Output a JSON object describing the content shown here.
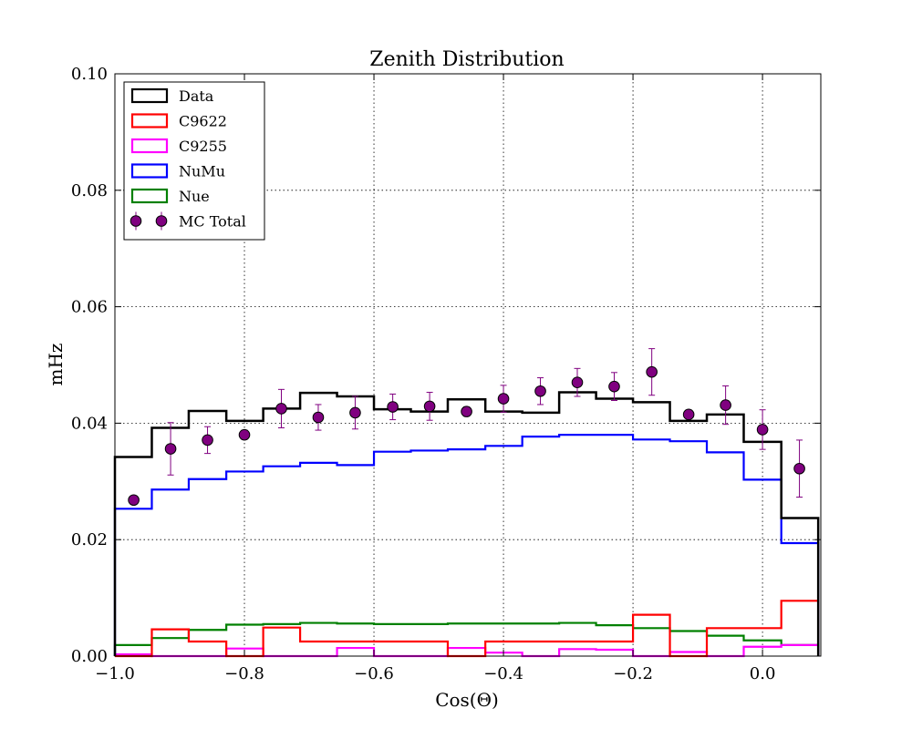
{
  "chart_data": {
    "type": "step-histogram",
    "title": "Zenith Distribution",
    "xlabel": "Cos(Θ)",
    "ylabel": "mHz",
    "xlim": [
      -1.0,
      0.09
    ],
    "ylim": [
      0.0,
      0.1
    ],
    "xticks": [
      -1.0,
      -0.8,
      -0.6,
      -0.4,
      -0.2,
      0.0
    ],
    "xtick_labels": [
      "−1.0",
      "−0.8",
      "−0.6",
      "−0.4",
      "−0.2",
      "0.0"
    ],
    "yticks": [
      0.0,
      0.02,
      0.04,
      0.06,
      0.08,
      0.1
    ],
    "ytick_labels": [
      "0.00",
      "0.02",
      "0.04",
      "0.06",
      "0.08",
      "0.10"
    ],
    "grid": true,
    "legend_position": "top-left",
    "bin_edges": [
      -1.0,
      -0.943,
      -0.886,
      -0.828,
      -0.771,
      -0.714,
      -0.657,
      -0.6,
      -0.543,
      -0.486,
      -0.428,
      -0.371,
      -0.314,
      -0.257,
      -0.2,
      -0.143,
      -0.086,
      -0.029,
      0.029,
      0.086
    ],
    "series": [
      {
        "name": "Data",
        "color": "#000000",
        "values": [
          0.0342,
          0.0392,
          0.0421,
          0.0404,
          0.0425,
          0.0452,
          0.0446,
          0.0424,
          0.042,
          0.0441,
          0.042,
          0.0418,
          0.0453,
          0.0442,
          0.0436,
          0.0404,
          0.0415,
          0.0368,
          0.0237
        ]
      },
      {
        "name": "C9622",
        "color": "#ff0000",
        "values": [
          0.0,
          0.0046,
          0.0025,
          0.0,
          0.0049,
          0.0025,
          0.0025,
          0.0025,
          0.0025,
          0.0,
          0.0025,
          0.0025,
          0.0025,
          0.0025,
          0.0071,
          0.0,
          0.0048,
          0.0048,
          0.0095
        ]
      },
      {
        "name": "C9255",
        "color": "#ff00ff",
        "values": [
          0.0003,
          0.0,
          0.0,
          0.0013,
          0.0,
          0.0,
          0.0014,
          0.0,
          0.0,
          0.0014,
          0.0006,
          0.0,
          0.0012,
          0.0011,
          0.0,
          0.0007,
          0.0,
          0.0016,
          0.0019
        ]
      },
      {
        "name": "NuMu",
        "color": "#0000ff",
        "values": [
          0.0253,
          0.0286,
          0.0304,
          0.0317,
          0.0326,
          0.0332,
          0.0328,
          0.0351,
          0.0353,
          0.0355,
          0.0361,
          0.0377,
          0.038,
          0.038,
          0.0372,
          0.0369,
          0.035,
          0.0303,
          0.0194
        ]
      },
      {
        "name": "Nue",
        "color": "#008000",
        "values": [
          0.0019,
          0.0031,
          0.0045,
          0.0054,
          0.0055,
          0.0057,
          0.0056,
          0.0055,
          0.0055,
          0.0056,
          0.0056,
          0.0056,
          0.0057,
          0.0053,
          0.0048,
          0.0043,
          0.0035,
          0.0027,
          0.0019
        ]
      }
    ],
    "points": {
      "name": "MC Total",
      "color": "#800080",
      "x": [
        -0.971,
        -0.914,
        -0.857,
        -0.8,
        -0.743,
        -0.686,
        -0.629,
        -0.571,
        -0.514,
        -0.457,
        -0.4,
        -0.343,
        -0.286,
        -0.229,
        -0.171,
        -0.114,
        -0.057,
        0.0,
        0.057
      ],
      "y": [
        0.0268,
        0.0356,
        0.0371,
        0.038,
        0.0425,
        0.041,
        0.0418,
        0.0428,
        0.0429,
        0.042,
        0.0442,
        0.0455,
        0.047,
        0.0463,
        0.0488,
        0.0415,
        0.0431,
        0.0389,
        0.0322
      ],
      "yerr": [
        0.0,
        0.0045,
        0.0023,
        0.0008,
        0.0033,
        0.0022,
        0.0028,
        0.0022,
        0.0024,
        0.0008,
        0.0023,
        0.0023,
        0.0024,
        0.0024,
        0.004,
        0.0,
        0.0033,
        0.0034,
        0.0049
      ]
    }
  }
}
